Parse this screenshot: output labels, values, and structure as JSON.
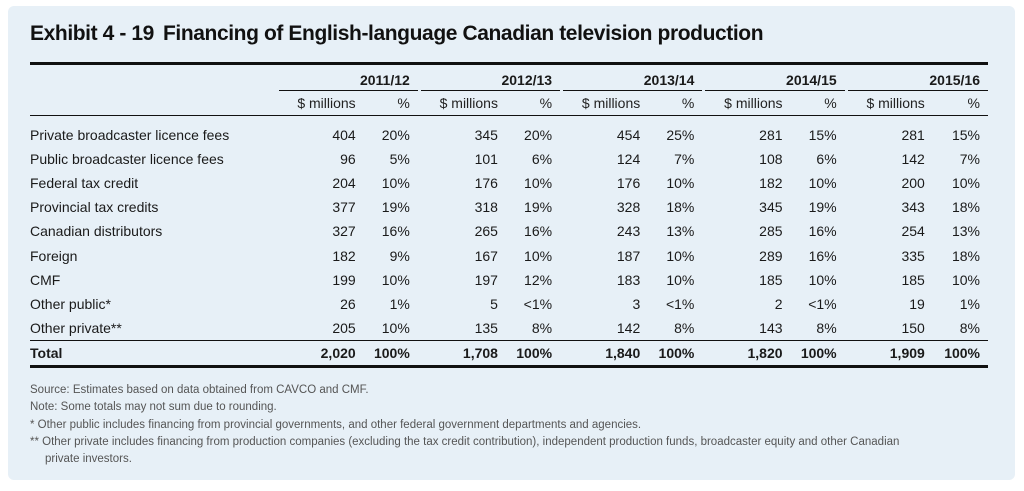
{
  "exhibit": {
    "number": "Exhibit 4 - 19",
    "title": "Financing of English-language Canadian television production"
  },
  "table": {
    "years": [
      "2011/12",
      "2012/13",
      "2013/14",
      "2014/15",
      "2015/16"
    ],
    "unit_millions": "$ millions",
    "unit_pct": "%",
    "rows": [
      {
        "label": "Private broadcaster licence fees",
        "cells": [
          [
            "404",
            "20%"
          ],
          [
            "345",
            "20%"
          ],
          [
            "454",
            "25%"
          ],
          [
            "281",
            "15%"
          ],
          [
            "281",
            "15%"
          ]
        ]
      },
      {
        "label": "Public broadcaster licence fees",
        "cells": [
          [
            "96",
            "5%"
          ],
          [
            "101",
            "6%"
          ],
          [
            "124",
            "7%"
          ],
          [
            "108",
            "6%"
          ],
          [
            "142",
            "7%"
          ]
        ]
      },
      {
        "label": "Federal tax credit",
        "cells": [
          [
            "204",
            "10%"
          ],
          [
            "176",
            "10%"
          ],
          [
            "176",
            "10%"
          ],
          [
            "182",
            "10%"
          ],
          [
            "200",
            "10%"
          ]
        ]
      },
      {
        "label": "Provincial tax credits",
        "cells": [
          [
            "377",
            "19%"
          ],
          [
            "318",
            "19%"
          ],
          [
            "328",
            "18%"
          ],
          [
            "345",
            "19%"
          ],
          [
            "343",
            "18%"
          ]
        ]
      },
      {
        "label": "Canadian distributors",
        "cells": [
          [
            "327",
            "16%"
          ],
          [
            "265",
            "16%"
          ],
          [
            "243",
            "13%"
          ],
          [
            "285",
            "16%"
          ],
          [
            "254",
            "13%"
          ]
        ]
      },
      {
        "label": "Foreign",
        "cells": [
          [
            "182",
            "9%"
          ],
          [
            "167",
            "10%"
          ],
          [
            "187",
            "10%"
          ],
          [
            "289",
            "16%"
          ],
          [
            "335",
            "18%"
          ]
        ]
      },
      {
        "label": "CMF",
        "cells": [
          [
            "199",
            "10%"
          ],
          [
            "197",
            "12%"
          ],
          [
            "183",
            "10%"
          ],
          [
            "185",
            "10%"
          ],
          [
            "185",
            "10%"
          ]
        ]
      },
      {
        "label": "Other public*",
        "cells": [
          [
            "26",
            "1%"
          ],
          [
            "5",
            "<1%"
          ],
          [
            "3",
            "<1%"
          ],
          [
            "2",
            "<1%"
          ],
          [
            "19",
            "1%"
          ]
        ]
      },
      {
        "label": "Other private**",
        "cells": [
          [
            "205",
            "10%"
          ],
          [
            "135",
            "8%"
          ],
          [
            "142",
            "8%"
          ],
          [
            "143",
            "8%"
          ],
          [
            "150",
            "8%"
          ]
        ]
      }
    ],
    "total": {
      "label": "Total",
      "cells": [
        [
          "2,020",
          "100%"
        ],
        [
          "1,708",
          "100%"
        ],
        [
          "1,840",
          "100%"
        ],
        [
          "1,820",
          "100%"
        ],
        [
          "1,909",
          "100%"
        ]
      ]
    }
  },
  "notes": {
    "source": "Source: Estimates based on data obtained from CAVCO and CMF.",
    "note": "Note: Some totals may not sum due to rounding.",
    "footnote_1": "* Other public includes financing from provincial governments, and other federal government departments and agencies.",
    "footnote_2_line1": "** Other private includes financing from production companies (excluding the tax credit contribution), independent production funds, broadcaster equity and other Canadian",
    "footnote_2_line2": "private investors."
  },
  "colors": {
    "panel_background": "#e7f0f7",
    "rule_color": "#111111",
    "notes_text": "#555555"
  }
}
